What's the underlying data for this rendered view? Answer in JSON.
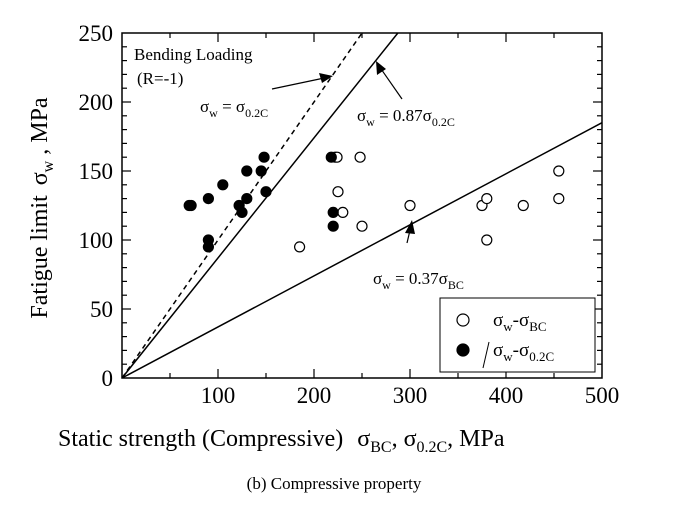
{
  "chart_data": {
    "type": "scatter",
    "caption": "(b) Compressive property",
    "xlabel": {
      "text": "Static strength (Compressive)",
      "symbols": [
        {
          "base": "σ",
          "sub": "BC",
          "after": ", "
        },
        {
          "base": "σ",
          "sub": "0.2C",
          "after": ",  MPa"
        }
      ]
    },
    "ylabel": {
      "text": "Fatigue limit",
      "symbol": "σ",
      "sub": "w",
      "after": " ,  MPa"
    },
    "xlim": [
      0,
      500
    ],
    "ylim": [
      0,
      250
    ],
    "x_ticks": [
      "100",
      "200",
      "300",
      "400",
      "500"
    ],
    "y_ticks": [
      "0",
      "50",
      "100",
      "150",
      "200",
      "250"
    ],
    "grid": false,
    "legend_position": "bottom-right",
    "series": [
      {
        "name": "σw-σBC",
        "legend_base": "σ",
        "legend_sub1": "w",
        "legend_mid": "-σ",
        "legend_sub2": "BC",
        "marker": "open-circle",
        "x": [
          185,
          222,
          224,
          225,
          230,
          248,
          250,
          300,
          375,
          380,
          380,
          418,
          455,
          455
        ],
        "y": [
          95,
          160,
          160,
          135,
          120,
          160,
          110,
          125,
          125,
          130,
          100,
          125,
          150,
          130
        ]
      },
      {
        "name": "σw-σ0.2C",
        "legend_base": "σ",
        "legend_sub1": "w",
        "legend_mid": "-σ",
        "legend_sub2": "0.2C",
        "marker": "filled-circle",
        "x": [
          70,
          72,
          90,
          90,
          90,
          105,
          122,
          125,
          130,
          130,
          145,
          148,
          150,
          218,
          220,
          220
        ],
        "y": [
          125,
          125,
          130,
          100,
          95,
          140,
          125,
          120,
          150,
          130,
          150,
          160,
          135,
          160,
          120,
          110
        ]
      }
    ],
    "lines": [
      {
        "name": "bending-loading-line",
        "style": "dashed",
        "slope": 1.0
      },
      {
        "name": "sigma-w-087-line",
        "style": "solid",
        "slope": 0.87
      },
      {
        "name": "sigma-w-037-line",
        "style": "solid",
        "slope": 0.37
      }
    ],
    "annotations": {
      "bending_title": "Bending Loading",
      "bending_ratio": "(R=-1)",
      "eq_dashed": {
        "base": "σ",
        "sub": "w",
        "mid": " = σ",
        "sub2": "0.2C"
      },
      "eq_087": {
        "base": "σ",
        "sub": "w",
        "mid": " = 0.87σ",
        "sub2": "0.2C"
      },
      "eq_037": {
        "base": "σ",
        "sub": "w",
        "mid": " = 0.37σ",
        "sub2": "BC"
      }
    }
  }
}
